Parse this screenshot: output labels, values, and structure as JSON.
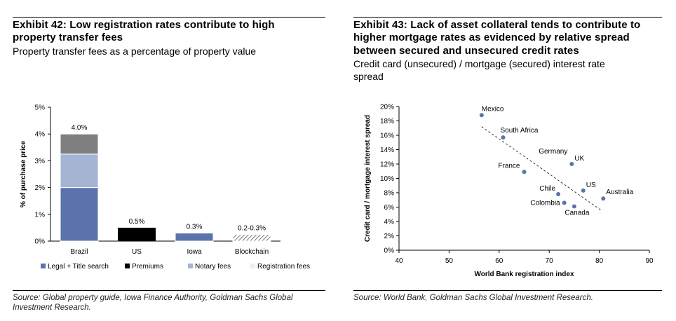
{
  "left": {
    "title_line1": "Exhibit 42: Low registration rates contribute to high",
    "title_line2": "property transfer fees",
    "subtitle": "Property transfer fees as a percentage of property value",
    "source_line1": "Source: Global property guide, Iowa Finance Authority, Goldman Sachs Global",
    "source_line2": "Investment Research."
  },
  "right": {
    "title_line1": "Exhibit 43: Lack of asset collateral tends to contribute to",
    "title_line2": "higher mortgage rates as evidenced by relative spread",
    "title_line3": "between secured and unsecured credit rates",
    "subtitle_line1": "Credit card (unsecured) / mortgage (secured) interest rate",
    "subtitle_line2": "spread",
    "source": "Source: World Bank, Goldman Sachs Global Investment Research."
  },
  "chart_data": [
    {
      "type": "bar",
      "stacked": true,
      "ylabel": "% of purchase price",
      "xlabel": "",
      "ylim": [
        0,
        5
      ],
      "yticks": [
        "0%",
        "1%",
        "2%",
        "3%",
        "4%",
        "5%"
      ],
      "categories": [
        "Brazil",
        "US",
        "Iowa",
        "Blockchain"
      ],
      "series": [
        {
          "name": "Legal + Title search",
          "color": "#5b73ad",
          "values": [
            2.0,
            0,
            0.3,
            0
          ]
        },
        {
          "name": "Premiums",
          "color": "#000000",
          "values": [
            0,
            0.5,
            0,
            0
          ]
        },
        {
          "name": "Notary fees",
          "color": "#a6b4d4",
          "values": [
            1.25,
            0,
            0,
            0
          ]
        },
        {
          "name": "Registration fees",
          "color": "#7f7f7f",
          "values": [
            0.75,
            0,
            0,
            0.25
          ]
        }
      ],
      "data_labels": [
        "4.0%",
        "0.5%",
        "0.3%",
        "0.2-0.3%"
      ],
      "legend_position": "bottom",
      "grid": false
    },
    {
      "type": "scatter",
      "xlabel": "World Bank registration index",
      "ylabel": "Credit card / mortgage interest spread",
      "xlim": [
        40,
        90
      ],
      "ylim": [
        0,
        20
      ],
      "xticks": [
        "40",
        "50",
        "60",
        "70",
        "80",
        "90"
      ],
      "yticks": [
        "0%",
        "2%",
        "4%",
        "6%",
        "8%",
        "10%",
        "12%",
        "14%",
        "16%",
        "18%",
        "20%"
      ],
      "points": [
        {
          "label": "Mexico",
          "x": 56.5,
          "y": 18.8
        },
        {
          "label": "South Africa",
          "x": 60.8,
          "y": 15.7
        },
        {
          "label": "Germany",
          "x": 74.5,
          "y": 12.0
        },
        {
          "label": "UK",
          "x": 74.5,
          "y": 12.0
        },
        {
          "label": "France",
          "x": 65.0,
          "y": 10.9
        },
        {
          "label": "Chile",
          "x": 71.8,
          "y": 7.8
        },
        {
          "label": "US",
          "x": 76.8,
          "y": 8.3
        },
        {
          "label": "Australia",
          "x": 80.8,
          "y": 7.2
        },
        {
          "label": "Colombia",
          "x": 73.0,
          "y": 6.6
        },
        {
          "label": "Canada",
          "x": 75.0,
          "y": 6.1
        }
      ],
      "trendline": {
        "x": [
          56.5,
          80.5
        ],
        "y": [
          17.2,
          5.5
        ],
        "style": "dashed"
      },
      "point_color": "#5b73ad",
      "grid": false
    }
  ]
}
